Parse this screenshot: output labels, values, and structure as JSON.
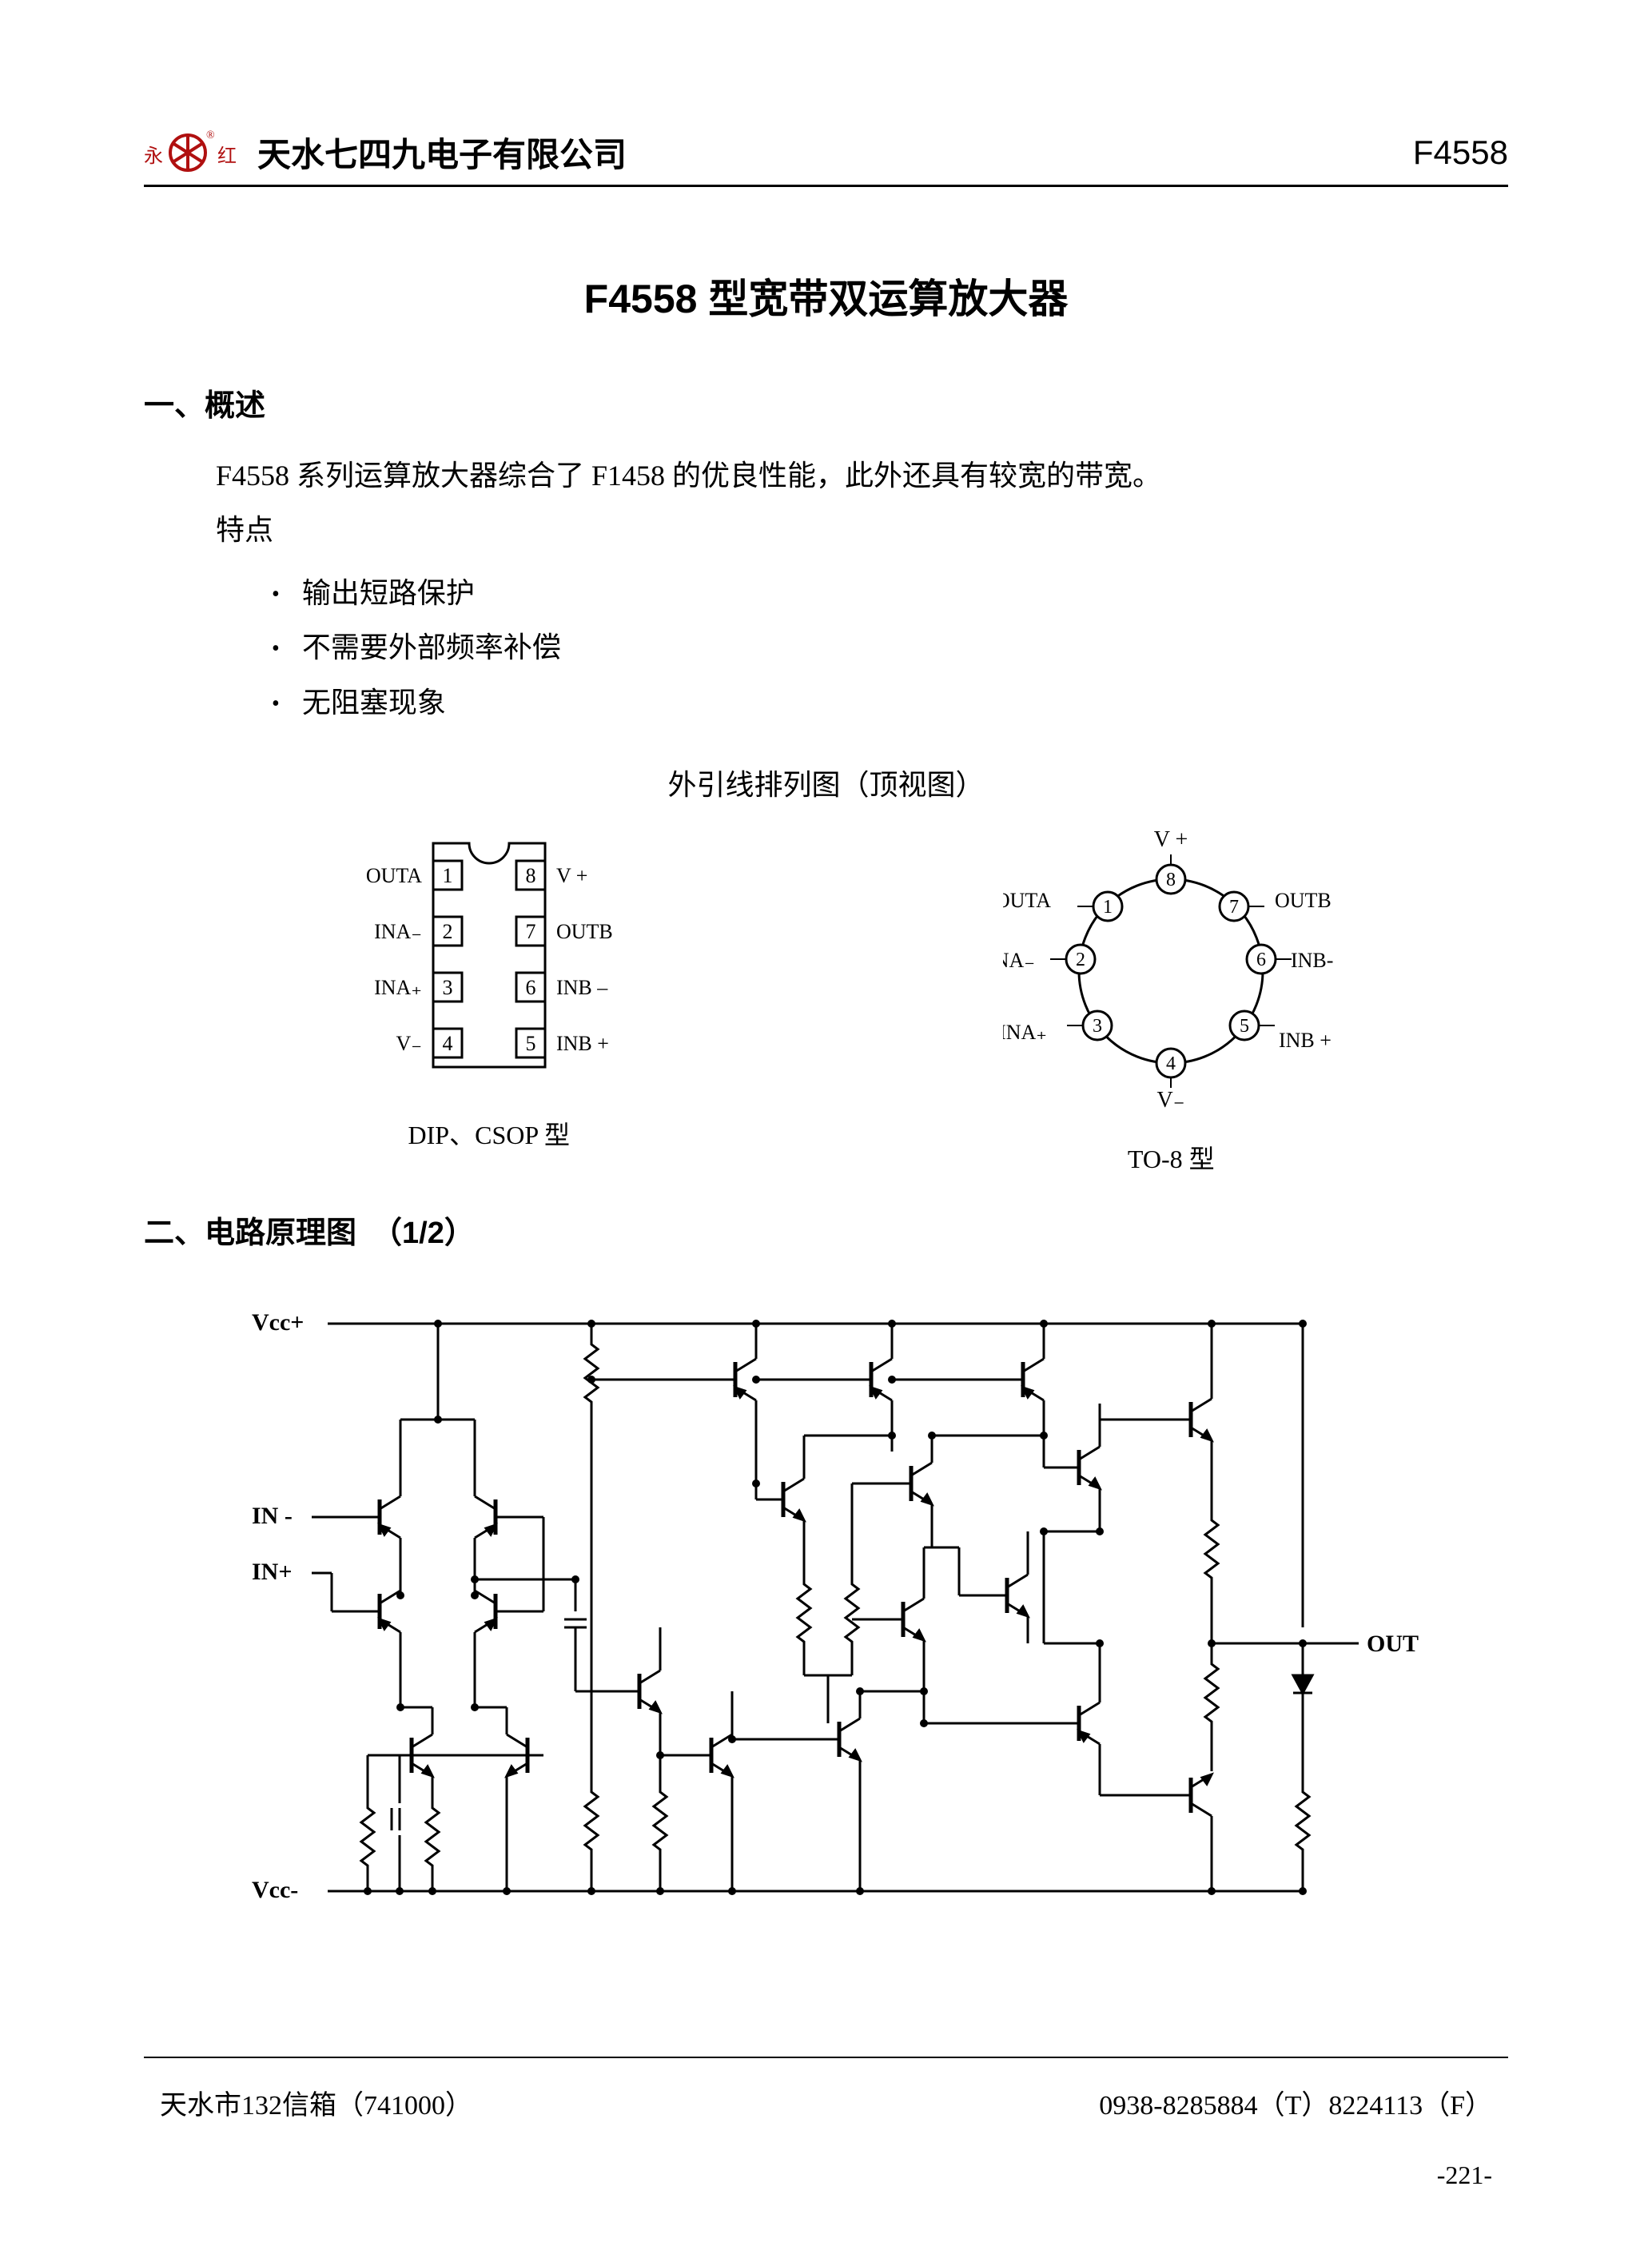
{
  "header": {
    "company_name": "天水七四九电子有限公司",
    "product_code": "F4558",
    "logo": {
      "left_char": "永",
      "right_char": "红",
      "trademark": "®",
      "colors": {
        "red": "#b01010",
        "black": "#000000"
      }
    }
  },
  "title": "F4558 型宽带双运算放大器",
  "section1": {
    "heading": "一、概述",
    "intro": "F4558 系列运算放大器综合了 F1458 的优良性能，此外还具有较宽的带宽。",
    "features_label": "特点",
    "features": [
      "输出短路保护",
      "不需要外部频率补偿",
      "无阻塞现象"
    ]
  },
  "pinout": {
    "caption": "外引线排列图（顶视图）",
    "dip": {
      "caption": "DIP、CSOP 型",
      "pins_left": [
        {
          "n": "1",
          "label": "OUTA"
        },
        {
          "n": "2",
          "label": "INA₋"
        },
        {
          "n": "3",
          "label": "INA₊"
        },
        {
          "n": "4",
          "label": "V₋"
        }
      ],
      "pins_right": [
        {
          "n": "8",
          "label": "V +"
        },
        {
          "n": "7",
          "label": "OUTB"
        },
        {
          "n": "6",
          "label": "INB –"
        },
        {
          "n": "5",
          "label": "INB +"
        }
      ]
    },
    "to8": {
      "caption": "TO-8 型",
      "top_label": "V +",
      "bottom_label": "V₋",
      "pins": [
        {
          "n": "1",
          "label": "OUTA",
          "angle": 135
        },
        {
          "n": "2",
          "label": "INA₋",
          "angle": 172
        },
        {
          "n": "3",
          "label": "INA₊",
          "angle": 210
        },
        {
          "n": "4",
          "label": "",
          "angle": 270
        },
        {
          "n": "5",
          "label": "INB +",
          "angle": 330
        },
        {
          "n": "6",
          "label": "INB-",
          "angle": 8
        },
        {
          "n": "7",
          "label": "OUTB",
          "angle": 45
        },
        {
          "n": "8",
          "label": "",
          "angle": 90
        }
      ]
    }
  },
  "section2": {
    "heading": "二、电路原理图　（1/2）",
    "schematic": {
      "labels": {
        "vcc_plus": "Vcc+",
        "vcc_minus": "Vcc-",
        "in_minus": "IN -",
        "in_plus": "IN+",
        "out": "OUT"
      },
      "stroke": "#000000",
      "stroke_width": 3
    }
  },
  "footer": {
    "address": "天水市132信箱（741000）",
    "phone": "0938-8285884（T）8224113（F）",
    "page": "-221-"
  }
}
